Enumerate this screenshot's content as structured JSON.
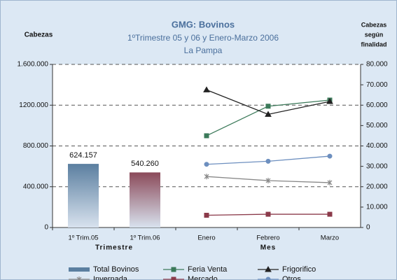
{
  "chart_data": {
    "type": "bar",
    "title": "GMG: Bovinos",
    "subtitle": [
      "1ºTrimestre 05 y 06 y  Enero-Marzo 2006",
      "La Pampa"
    ],
    "ylabel": "Cabezas",
    "y2label": [
      "Cabezas",
      "según",
      "finalidad"
    ],
    "categories": [
      "1º Trim.05",
      "1º Trim.06",
      "Enero",
      "Febrero",
      "Marzo"
    ],
    "x_groups": [
      {
        "label": "Trimestre",
        "from": 0,
        "to": 1
      },
      {
        "label": "Mes",
        "from": 2,
        "to": 4
      }
    ],
    "ylim": [
      0,
      1600000
    ],
    "yticks": [
      0,
      {
        "value": 400000,
        "label": "400.000"
      },
      {
        "value": 800000,
        "label": "800.000"
      },
      {
        "value": 1200000,
        "label": "1200.000"
      },
      {
        "value": 1600000,
        "label": "1.600.000"
      }
    ],
    "y2lim": [
      0,
      80000
    ],
    "y2ticks": [
      0,
      {
        "value": 10000,
        "label": "10.000"
      },
      {
        "value": 20000,
        "label": "20.000"
      },
      {
        "value": 30000,
        "label": "30.000"
      },
      {
        "value": 40000,
        "label": "40.000"
      },
      {
        "value": 50000,
        "label": "50.000"
      },
      {
        "value": 60000,
        "label": "60.000"
      },
      {
        "value": 70000,
        "label": "70.000"
      },
      {
        "value": 80000,
        "label": "80.000"
      }
    ],
    "grid": true,
    "series": [
      {
        "name": "Total Bovinos",
        "type": "bar",
        "color": "#5b7fa0",
        "values": [
          624157,
          540260,
          null,
          null,
          null
        ],
        "value_labels": [
          "624.157",
          "540.260",
          null,
          null,
          null
        ]
      },
      {
        "name": "Feria Venta",
        "type": "line",
        "axis": "y2",
        "marker": "square",
        "color": "#3c7a5a",
        "values": [
          null,
          null,
          45000,
          59500,
          62500
        ]
      },
      {
        "name": "Frigorifico",
        "type": "line",
        "axis": "y2",
        "marker": "triangle",
        "color": "#222222",
        "values": [
          null,
          null,
          67500,
          55500,
          61800
        ]
      },
      {
        "name": "Invernada",
        "type": "line",
        "axis": "y2",
        "marker": "x",
        "color": "#888888",
        "values": [
          null,
          null,
          25000,
          23000,
          22000
        ]
      },
      {
        "name": "Mercado",
        "type": "line",
        "axis": "y2",
        "marker": "square",
        "color": "#8b3a4a",
        "values": [
          null,
          null,
          6000,
          6500,
          6500
        ]
      },
      {
        "name": "Otros",
        "type": "line",
        "axis": "y2",
        "marker": "circle",
        "color": "#6d8fbf",
        "values": [
          null,
          null,
          31000,
          32500,
          35000
        ]
      }
    ]
  }
}
